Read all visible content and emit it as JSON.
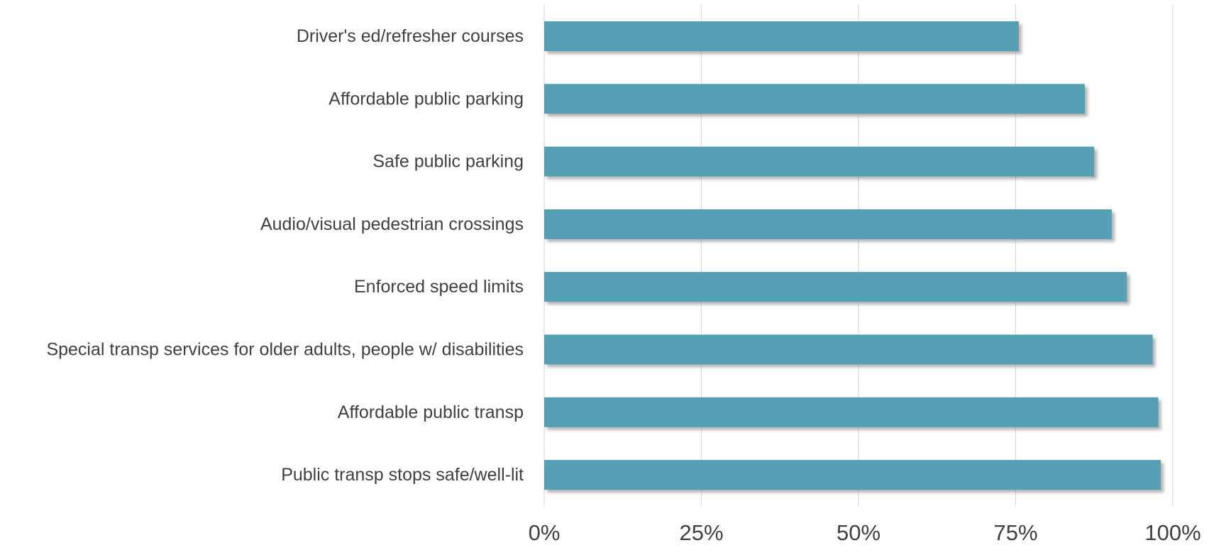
{
  "chart_data": {
    "type": "bar",
    "orientation": "horizontal",
    "categories": [
      "Driver's ed/refresher courses",
      "Affordable public parking",
      "Safe public parking",
      "Audio/visual pedestrian crossings",
      "Enforced speed limits",
      "Special transp services for older adults, people w/ disabilities",
      "Affordable public transp",
      "Public transp stops safe/well-lit"
    ],
    "values": [
      75.5,
      86,
      87.5,
      90.3,
      92.7,
      96.8,
      97.7,
      98.1
    ],
    "xlim": [
      0,
      100
    ],
    "x_ticks": [
      0,
      25,
      50,
      75,
      100
    ],
    "x_tick_labels": [
      "0%",
      "25%",
      "50%",
      "75%",
      "100%"
    ],
    "grid": "vertical",
    "bar_color": "#55a0b4",
    "title": "",
    "xlabel": "",
    "ylabel": ""
  },
  "colors": {
    "bar": "#55a0b4",
    "bar_shadow": "#8c8c8c",
    "grid": "#d9d9d9",
    "category_text": "#404040",
    "tick_text": "#404040"
  }
}
